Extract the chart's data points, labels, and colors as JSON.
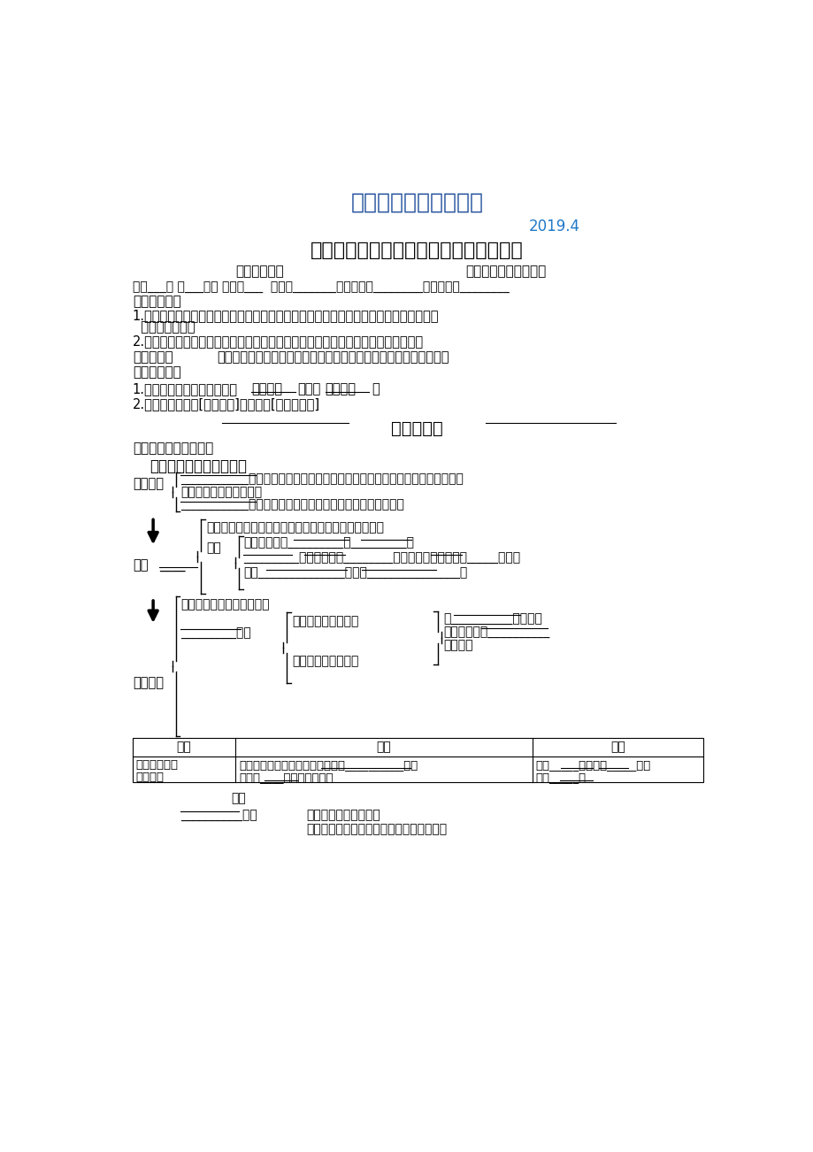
{
  "bg_color": "#ffffff",
  "title_top": "最新地理精品教学资料",
  "title_top_color": "#1f4e9b",
  "date": "2019.4",
  "date_color": "#1f78c8",
  "main_title": "第四章第２节《工业地域的形成》导学案",
  "editor_line_left": "编制：周解令",
  "editor_line_right": "审核：高一地理备课组",
  "student_line": "高一___班 第___小组 学号：___  姓名：_______小组评价：________老师评价：________",
  "xuexi_label": "【学习目标】",
  "xuexi_1a": "1.运用案例理解工业联系、工业集聚、工业地域三个概念的区别与联系，理解工业地域形",
  "xuexi_1b": "  成的主要原因。",
  "xuexi_2": "2.了解工业集聚和分散的主要表现形式、原因和优势以及工业地域联系的主要形式。",
  "zhongnan_label": "【重难点】",
  "zhongnan_text": "理解工业地域形成的主要原因，分析工业集聚和分散的原因及优势。",
  "shiyong_label": "【使用说明】",
  "shiyong_1a": "1.课前预习：根据导学案梳理",
  "shiyong_1b": "基础知识",
  "shiyong_1c": "，完成",
  "shiyong_1d": "探究题目",
  "shiyong_1e": "。",
  "shiyong_2": "2.课后作业：完成[金版学案]和本节的[知识结构图]",
  "keqian_title": "课前预习案",
  "jiaocai_label": "【教材基础知识梳理】",
  "yigye_title": "一、工业集聚与工业地域",
  "lianxi_label": "工业联系",
  "gongye_label": "工业",
  "gongye_blank": "____",
  "youshi_label": "优势",
  "gainian_text": "概念：工业集聚而成的地域",
  "fenleibrace_text": "_________分类",
  "zifa_text": "自发形成的工业地域",
  "guihua_text": "规划建设的工业地域",
  "gongyediyu_label": "工业地域",
  "lianxi_line1a": "___________上的联系：工厂之间存在着产品与原料的联系，一家工厂生产的产",
  "lianxi_line1b": "品是另一家工厂的原料。",
  "lianxi_line2": "___________上的联系：共同利用基础设施或廉价的劳动力。",
  "xingcheng_text": "形成：具有工业联系的一些工厂往往近距离聚集起来。",
  "youshi_1": "加强企业间的_________和_________。",
  "youshi_2": "_________的运输费用和________，降低生产成本，获得_____效益。",
  "youshi_3": "共同______________；节约_______________。",
  "zifa_right1": "以__________的工业联",
  "zifa_right2": "系为基础，以__________",
  "zifa_right3": "为目的。",
  "table_col1": "类型",
  "table_col2": "特点",
  "table_col3": "举例",
  "table_row1_c1a": "发育程度高的",
  "table_row1_c1b": "工业地域",
  "table_row1_c2a": "内部工业联系比较复杂，工业地域__________，协",
  "table_row1_c2b": "作企业____，生产规模大。",
  "table_row1_c3a": "鞍山_____城、大庆_____城、",
  "table_row1_c3b": "十堰_____等",
  "bottom_leixing": "类型",
  "bottom_fenlei": "__________分类",
  "bottom_di": "发育程度低的工业地域",
  "bottom_gao": "发育程度高的工业地域：如：钢城、汽车城"
}
